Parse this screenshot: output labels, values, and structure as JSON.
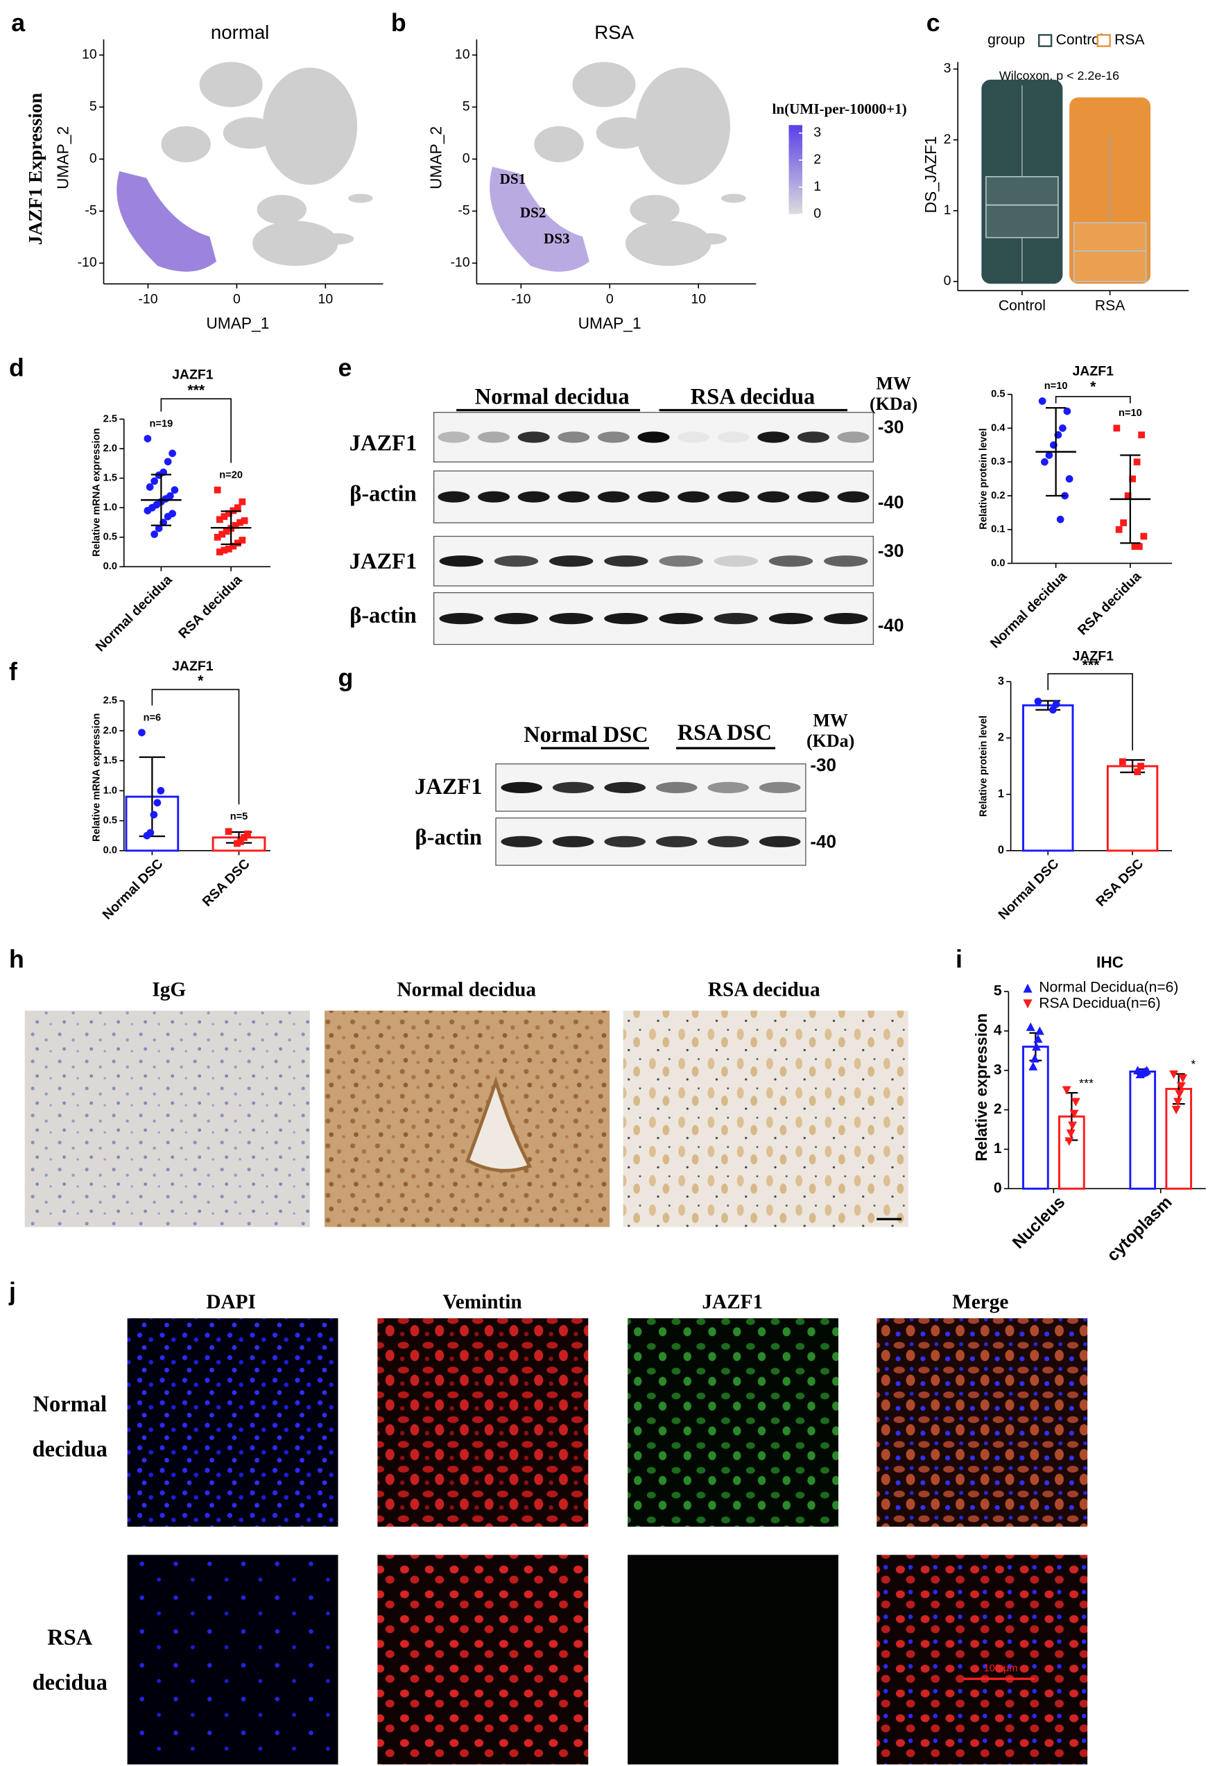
{
  "figure": {
    "panels": [
      "a",
      "b",
      "c",
      "d",
      "e",
      "f",
      "g",
      "h",
      "i",
      "j"
    ],
    "side_label": "JAZF1 Expression",
    "blot_e": {
      "groups": [
        "Normal decidua",
        "RSA decidua"
      ],
      "mw": [
        "MW",
        "(KDa)"
      ],
      "rows": [
        "JAZF1",
        "β-actin",
        "JAZF1",
        "β-actin"
      ],
      "markers": [
        "-30",
        "-40",
        "-30",
        "-40"
      ]
    },
    "blot_g": {
      "groups": [
        "Normal DSC",
        "RSA DSC"
      ],
      "mw": [
        "MW",
        "(KDa)"
      ],
      "rows": [
        "JAZF1",
        "β-actin"
      ],
      "markers": [
        "-30",
        "-40"
      ]
    },
    "ihc_images": [
      "IgG",
      "Normal decidua",
      "RSA decidua"
    ],
    "if_columns": [
      "DAPI",
      "Vemintin",
      "JAZF1",
      "Merge"
    ],
    "if_rows": [
      [
        "Normal",
        "decidua"
      ],
      [
        "RSA",
        "decidua"
      ]
    ],
    "scale_bar": "100 μm"
  },
  "chart_data": [
    {
      "type": "scatter",
      "title": "normal",
      "xlabel": "UMAP_1",
      "ylabel": "UMAP_2",
      "xlim": [
        -15,
        16.5
      ],
      "xticks": [
        -10,
        0,
        10
      ],
      "ylim": [
        -12,
        11.5
      ],
      "yticks": [
        -10,
        -5,
        0,
        5,
        10
      ]
    },
    {
      "type": "scatter",
      "title": "RSA",
      "xlabel": "UMAP_1",
      "ylabel": "UMAP_2",
      "xlim": [
        -15,
        16.5
      ],
      "xticks": [
        -10,
        0,
        10
      ],
      "ylim": [
        -12,
        11.5
      ],
      "yticks": [
        -10,
        -5,
        0,
        5,
        10
      ],
      "annotations": [
        "DS1",
        "DS2",
        "DS3"
      ],
      "colorbar": {
        "title": "ln(UMI-per-10000+1)",
        "lim": [
          0,
          3.3
        ],
        "ticks": [
          0,
          1,
          2,
          3
        ],
        "colors": [
          "#dcdcdc",
          "#5a3fe8"
        ]
      }
    },
    {
      "type": "box",
      "legend_title": "group",
      "categories": [
        "Control",
        "RSA"
      ],
      "colors": [
        "#2f4f4f",
        "#e8923a"
      ],
      "ylabel": "DS_JAZF1",
      "annotation": "Wilcoxon, p < 2.2e-16",
      "ylim": [
        -0.13,
        3.1
      ],
      "yticks": [
        0,
        1,
        2,
        3
      ],
      "boxes": [
        {
          "low": 0,
          "q1": 0.62,
          "median": 1.08,
          "q3": 1.48,
          "high": 2.77
        },
        {
          "low": 0,
          "q1": 0,
          "median": 0.43,
          "q3": 0.83,
          "high": 2.08
        }
      ],
      "outlier_max": [
        2.85,
        2.6
      ]
    },
    {
      "type": "strip",
      "title": "JAZF1",
      "ylabel": "Relative mRNA expression",
      "categories": [
        "Normal decidua",
        "RSA decidua"
      ],
      "colors": [
        "#1a1aff",
        "#ff1a1a"
      ],
      "values": [
        1.13,
        0.66
      ],
      "errors": [
        0.43,
        0.28
      ],
      "points": [
        [
          2.17,
          1.92,
          1.78,
          1.6,
          1.55,
          1.45,
          1.35,
          1.3,
          1.2,
          1.15,
          1.1,
          1.05,
          1.0,
          0.95,
          0.9,
          0.85,
          0.75,
          0.65,
          0.55
        ],
        [
          1.3,
          1.1,
          1.0,
          0.95,
          0.9,
          0.85,
          0.8,
          0.78,
          0.75,
          0.7,
          0.65,
          0.6,
          0.55,
          0.5,
          0.45,
          0.4,
          0.35,
          0.3,
          0.28,
          0.25
        ]
      ],
      "n_labels": [
        "n=19",
        "n=20"
      ],
      "significance": "***",
      "ylim": [
        0,
        2.5
      ],
      "yticks": [
        {
          "value": 0,
          "label": "0.0"
        },
        0.5,
        {
          "value": 1,
          "label": "1.0"
        },
        1.5,
        {
          "value": 2,
          "label": "2.0"
        },
        2.5
      ]
    },
    {
      "type": "strip",
      "title": "JAZF1",
      "ylabel": "Relative protein level",
      "categories": [
        "Normal decidua",
        "RSA decidua"
      ],
      "colors": [
        "#1a1aff",
        "#ff1a1a"
      ],
      "values": [
        0.33,
        0.19
      ],
      "errors": [
        0.13,
        0.13
      ],
      "points": [
        [
          0.48,
          0.45,
          0.4,
          0.38,
          0.35,
          0.32,
          0.3,
          0.25,
          0.2,
          0.13
        ],
        [
          0.4,
          0.38,
          0.3,
          0.25,
          0.2,
          0.12,
          0.1,
          0.08,
          0.05,
          0.05
        ]
      ],
      "n_labels": [
        "n=10",
        "n=10"
      ],
      "significance": "*",
      "ylim": [
        0,
        0.5
      ],
      "yticks": [
        {
          "value": 0,
          "label": "0.0"
        },
        0.1,
        0.2,
        0.3,
        0.4,
        0.5
      ]
    },
    {
      "type": "bar",
      "title": "JAZF1",
      "ylabel": "Relative mRNA expression",
      "categories": [
        "Normal DSC",
        "RSA DSC"
      ],
      "colors": [
        "#1a1aff",
        "#ff1a1a"
      ],
      "values": [
        0.9,
        0.22
      ],
      "errors": [
        0.66,
        0.09
      ],
      "points": [
        [
          1.97,
          1.0,
          0.8,
          0.6,
          0.3,
          0.25
        ],
        [
          0.32,
          0.28,
          0.22,
          0.15,
          0.12
        ]
      ],
      "n_labels": [
        "n=6",
        "n=5"
      ],
      "significance": "*",
      "ylim": [
        0,
        2.5
      ],
      "yticks": [
        {
          "value": 0,
          "label": "0.0"
        },
        0.5,
        {
          "value": 1,
          "label": "1.0"
        },
        1.5,
        {
          "value": 2,
          "label": "2.0"
        },
        2.5
      ]
    },
    {
      "type": "bar",
      "title": "JAZF1",
      "ylabel": "Relative protein level",
      "categories": [
        "Normal DSC",
        "RSA DSC"
      ],
      "colors": [
        "#1a1aff",
        "#ff1a1a"
      ],
      "values": [
        2.58,
        1.5
      ],
      "errors": [
        0.08,
        0.11
      ],
      "points": [
        [
          2.65,
          2.6,
          2.5
        ],
        [
          1.58,
          1.5,
          1.4
        ]
      ],
      "significance": "***",
      "ylim": [
        0,
        3
      ],
      "yticks": [
        0,
        1,
        2,
        3
      ]
    },
    {
      "type": "bar",
      "title": "IHC",
      "ylabel": "Relative expression",
      "categories": [
        "Nucleus",
        "cytoplasm"
      ],
      "series": [
        {
          "name": "Normal Decidua(n=6)",
          "color": "#1a1aff",
          "values": [
            3.6,
            2.97
          ],
          "errors": [
            0.35,
            0.06
          ],
          "points": [
            [
              4.1,
              4.0,
              3.8,
              3.6,
              3.3,
              3.1
            ],
            [
              3.0,
              3.0,
              2.97,
              2.95,
              2.93,
              2.9
            ]
          ]
        },
        {
          "name": "RSA Decidua(n=6)",
          "color": "#ff1a1a",
          "values": [
            1.83,
            2.53
          ],
          "errors": [
            0.6,
            0.38
          ],
          "points": [
            [
              2.5,
              2.2,
              1.9,
              1.6,
              1.4,
              1.2
            ],
            [
              2.9,
              2.8,
              2.6,
              2.4,
              2.2,
              2.0
            ]
          ]
        }
      ],
      "annotations": [
        "***",
        "*"
      ],
      "ylim": [
        0,
        5
      ],
      "yticks": [
        0,
        1,
        2,
        3,
        4,
        5
      ]
    }
  ]
}
